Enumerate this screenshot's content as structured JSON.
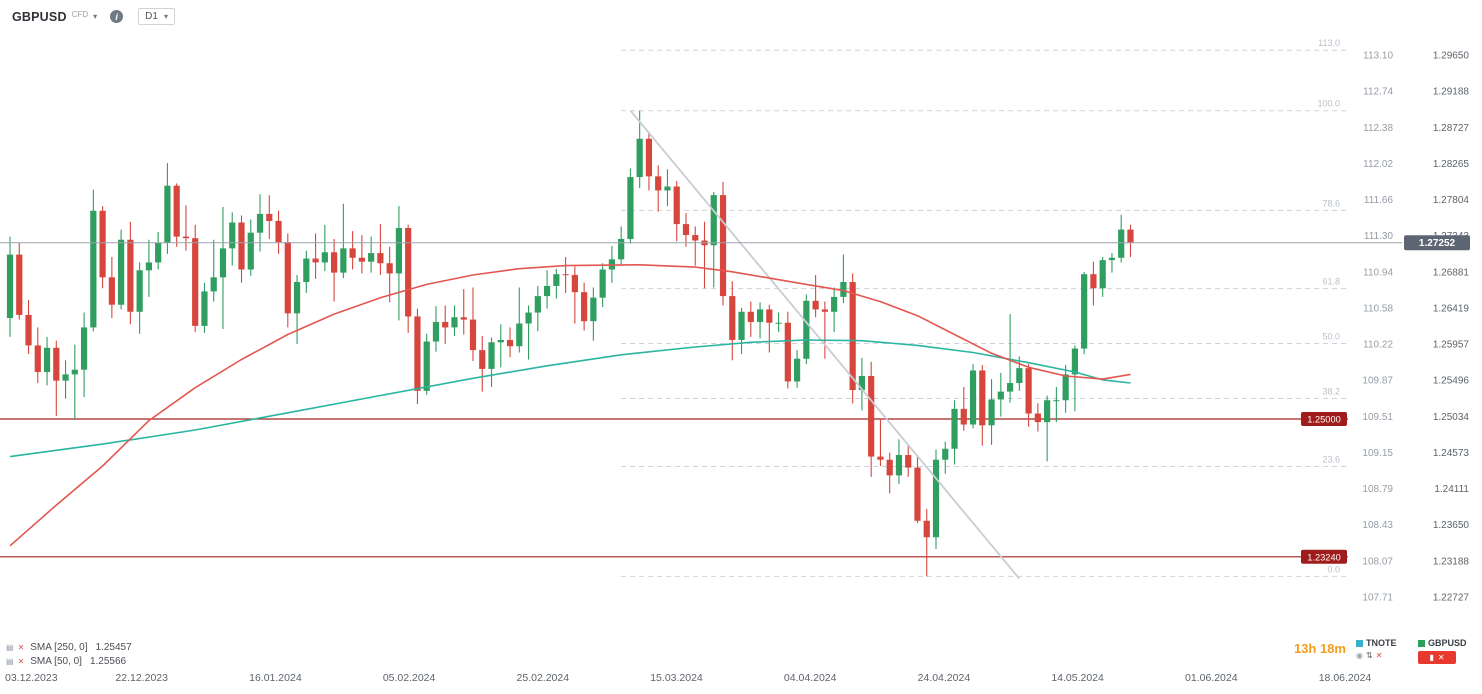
{
  "header": {
    "symbol": "GBPUSD",
    "market": "CFD",
    "timeframe": "D1"
  },
  "colors": {
    "bull": "#2f9e60",
    "bear": "#d7463d",
    "sma_50": "#e2574f",
    "sma_250": "#2ab5a0",
    "fib": "#cdd3da",
    "trendline": "#c9cdd3",
    "price_line": "#9aa2ab",
    "level_line": "#a32320",
    "level_badge": "#9e1d1c",
    "current_badge": "#5f6673",
    "countdown": "#f49d1d",
    "tnote_square": "#35b2c8",
    "gbpusd_square": "#2e9e5b"
  },
  "chart_data": {
    "type": "candlestick",
    "title": "GBPUSD CFD, D1",
    "current_price": 1.27252,
    "current_price_label": "1.27252",
    "y_axis_price": [
      "1.29650",
      "1.29188",
      "1.28727",
      "1.28265",
      "1.27804",
      "1.27343",
      "1.26881",
      "1.26419",
      "1.25957",
      "1.25496",
      "1.25034",
      "1.24573",
      "1.24111",
      "1.23650",
      "1.23188",
      "1.22727"
    ],
    "y_axis_secondary": [
      "113.10",
      "112.74",
      "112.38",
      "112.02",
      "111.66",
      "111.30",
      "110.94",
      "110.58",
      "110.22",
      "109.87",
      "109.51",
      "109.15",
      "108.79",
      "108.43",
      "108.07",
      "107.71"
    ],
    "x_axis_dates": [
      "03.12.2023",
      "22.12.2023",
      "16.01.2024",
      "05.02.2024",
      "25.02.2024",
      "15.03.2024",
      "04.04.2024",
      "24.04.2024",
      "14.05.2024",
      "01.06.2024",
      "18.06.2024"
    ],
    "horizontal_lines": [
      {
        "price": 1.25,
        "label": "1.25000"
      },
      {
        "price": 1.2324,
        "label": "1.23240"
      }
    ],
    "fibonacci": {
      "start_index": 66,
      "levels": [
        {
          "label": "113.0",
          "price": 1.29711
        },
        {
          "label": "100.0",
          "price": 1.28938
        },
        {
          "label": "78.6",
          "price": 1.27665
        },
        {
          "label": "61.8",
          "price": 1.26666
        },
        {
          "label": "50.0",
          "price": 1.25964
        },
        {
          "label": "38.2",
          "price": 1.25262
        },
        {
          "label": "23.6",
          "price": 1.24394
        },
        {
          "label": "0.0",
          "price": 1.2299
        }
      ]
    },
    "trendline": {
      "from": {
        "index": 67,
        "price": 1.2894
      },
      "to": {
        "index": 109,
        "price": 1.2296
      }
    },
    "sma50": {
      "points": [
        [
          0,
          1.2338
        ],
        [
          5,
          1.239
        ],
        [
          10,
          1.244
        ],
        [
          15,
          1.2498
        ],
        [
          20,
          1.254
        ],
        [
          25,
          1.2576
        ],
        [
          30,
          1.2608
        ],
        [
          35,
          1.2634
        ],
        [
          40,
          1.2655
        ],
        [
          45,
          1.2672
        ],
        [
          50,
          1.2684
        ],
        [
          55,
          1.2692
        ],
        [
          60,
          1.2696
        ],
        [
          68,
          1.2697
        ],
        [
          74,
          1.2694
        ],
        [
          78,
          1.2688
        ],
        [
          82,
          1.268
        ],
        [
          86,
          1.2672
        ],
        [
          90,
          1.2664
        ],
        [
          94,
          1.265
        ],
        [
          98,
          1.2632
        ],
        [
          102,
          1.2608
        ],
        [
          106,
          1.2584
        ],
        [
          110,
          1.2566
        ],
        [
          114,
          1.2555
        ],
        [
          118,
          1.2551
        ],
        [
          121,
          1.2557
        ]
      ]
    },
    "sma250": {
      "points": [
        [
          0,
          1.2452
        ],
        [
          10,
          1.2468
        ],
        [
          20,
          1.2486
        ],
        [
          30,
          1.2508
        ],
        [
          40,
          1.253
        ],
        [
          50,
          1.2552
        ],
        [
          58,
          1.2568
        ],
        [
          66,
          1.2582
        ],
        [
          74,
          1.2592
        ],
        [
          80,
          1.2598
        ],
        [
          86,
          1.2601
        ],
        [
          92,
          1.26
        ],
        [
          98,
          1.2594
        ],
        [
          104,
          1.2585
        ],
        [
          110,
          1.2572
        ],
        [
          115,
          1.256
        ],
        [
          118,
          1.255
        ],
        [
          121,
          1.2546
        ]
      ]
    },
    "candles": [
      [
        1.2629,
        1.2733,
        1.2605,
        1.271
      ],
      [
        1.271,
        1.2725,
        1.2627,
        1.2633
      ],
      [
        1.2633,
        1.2652,
        1.2583,
        1.2594
      ],
      [
        1.2594,
        1.2617,
        1.2546,
        1.256
      ],
      [
        1.256,
        1.2605,
        1.2543,
        1.2591
      ],
      [
        1.2591,
        1.26,
        1.2504,
        1.2549
      ],
      [
        1.2549,
        1.2575,
        1.2526,
        1.2557
      ],
      [
        1.2557,
        1.2595,
        1.25,
        1.2563
      ],
      [
        1.2563,
        1.2636,
        1.2528,
        1.2617
      ],
      [
        1.2617,
        1.2793,
        1.2612,
        1.2766
      ],
      [
        1.2766,
        1.2772,
        1.2667,
        1.2681
      ],
      [
        1.2681,
        1.2707,
        1.2629,
        1.2646
      ],
      [
        1.2646,
        1.2742,
        1.264,
        1.2729
      ],
      [
        1.2729,
        1.2752,
        1.2621,
        1.2637
      ],
      [
        1.2637,
        1.27,
        1.2609,
        1.269
      ],
      [
        1.269,
        1.2729,
        1.2656,
        1.27
      ],
      [
        1.27,
        1.2739,
        1.2691,
        1.2725
      ],
      [
        1.2725,
        1.2827,
        1.2711,
        1.2798
      ],
      [
        1.2798,
        1.2801,
        1.272,
        1.2733
      ],
      [
        1.2733,
        1.2773,
        1.2715,
        1.2731
      ],
      [
        1.2731,
        1.2748,
        1.2611,
        1.2619
      ],
      [
        1.2619,
        1.2674,
        1.261,
        1.2663
      ],
      [
        1.2663,
        1.2729,
        1.265,
        1.2681
      ],
      [
        1.2681,
        1.2771,
        1.2615,
        1.2718
      ],
      [
        1.2718,
        1.2764,
        1.2696,
        1.2751
      ],
      [
        1.2751,
        1.276,
        1.2674,
        1.2691
      ],
      [
        1.2691,
        1.2755,
        1.2683,
        1.2738
      ],
      [
        1.2738,
        1.2787,
        1.2714,
        1.2762
      ],
      [
        1.2762,
        1.2786,
        1.273,
        1.2753
      ],
      [
        1.2753,
        1.2766,
        1.2711,
        1.2726
      ],
      [
        1.2726,
        1.2737,
        1.2617,
        1.2635
      ],
      [
        1.2635,
        1.2684,
        1.2596,
        1.2675
      ],
      [
        1.2675,
        1.2715,
        1.2661,
        1.2705
      ],
      [
        1.2705,
        1.2737,
        1.2679,
        1.27
      ],
      [
        1.27,
        1.2748,
        1.2689,
        1.2713
      ],
      [
        1.2713,
        1.273,
        1.265,
        1.2687
      ],
      [
        1.2687,
        1.2775,
        1.268,
        1.2718
      ],
      [
        1.2718,
        1.274,
        1.2691,
        1.2706
      ],
      [
        1.2706,
        1.2735,
        1.2686,
        1.2701
      ],
      [
        1.2701,
        1.2733,
        1.2687,
        1.2712
      ],
      [
        1.2712,
        1.2749,
        1.2684,
        1.2699
      ],
      [
        1.2699,
        1.272,
        1.2649,
        1.2686
      ],
      [
        1.2686,
        1.2772,
        1.2626,
        1.2744
      ],
      [
        1.2744,
        1.2748,
        1.261,
        1.2631
      ],
      [
        1.2631,
        1.2641,
        1.2519,
        1.2536
      ],
      [
        1.2536,
        1.2609,
        1.2531,
        1.2599
      ],
      [
        1.2599,
        1.2644,
        1.2586,
        1.2624
      ],
      [
        1.2624,
        1.2645,
        1.2596,
        1.2617
      ],
      [
        1.2617,
        1.2645,
        1.2606,
        1.263
      ],
      [
        1.263,
        1.2666,
        1.2608,
        1.2627
      ],
      [
        1.2627,
        1.2668,
        1.2574,
        1.2588
      ],
      [
        1.2588,
        1.2606,
        1.2535,
        1.2564
      ],
      [
        1.2564,
        1.2604,
        1.2541,
        1.2598
      ],
      [
        1.2598,
        1.2621,
        1.2566,
        1.2601
      ],
      [
        1.2601,
        1.2617,
        1.2579,
        1.2593
      ],
      [
        1.2593,
        1.2668,
        1.2585,
        1.2622
      ],
      [
        1.2622,
        1.2645,
        1.2576,
        1.2636
      ],
      [
        1.2636,
        1.267,
        1.2612,
        1.2657
      ],
      [
        1.2657,
        1.269,
        1.2641,
        1.267
      ],
      [
        1.267,
        1.2692,
        1.2654,
        1.2685
      ],
      [
        1.2685,
        1.2707,
        1.2661,
        1.2684
      ],
      [
        1.2684,
        1.2695,
        1.2622,
        1.2662
      ],
      [
        1.2662,
        1.2674,
        1.2613,
        1.2625
      ],
      [
        1.2625,
        1.2668,
        1.26,
        1.2655
      ],
      [
        1.2655,
        1.2699,
        1.2643,
        1.2691
      ],
      [
        1.2691,
        1.2721,
        1.2674,
        1.2704
      ],
      [
        1.2704,
        1.2746,
        1.2696,
        1.273
      ],
      [
        1.273,
        1.282,
        1.2724,
        1.2809
      ],
      [
        1.2809,
        1.2894,
        1.2795,
        1.2858
      ],
      [
        1.2858,
        1.2867,
        1.2792,
        1.281
      ],
      [
        1.281,
        1.2824,
        1.2765,
        1.2792
      ],
      [
        1.2792,
        1.2819,
        1.2772,
        1.2797
      ],
      [
        1.2797,
        1.2804,
        1.2727,
        1.2749
      ],
      [
        1.2749,
        1.2763,
        1.272,
        1.2735
      ],
      [
        1.2735,
        1.2746,
        1.2696,
        1.2728
      ],
      [
        1.2728,
        1.2752,
        1.2667,
        1.2722
      ],
      [
        1.2722,
        1.279,
        1.2668,
        1.2786
      ],
      [
        1.2786,
        1.2803,
        1.2645,
        1.2657
      ],
      [
        1.2657,
        1.2676,
        1.2575,
        1.2601
      ],
      [
        1.2601,
        1.2642,
        1.2583,
        1.2637
      ],
      [
        1.2637,
        1.265,
        1.2605,
        1.2624
      ],
      [
        1.2624,
        1.2649,
        1.2603,
        1.264
      ],
      [
        1.264,
        1.2646,
        1.2585,
        1.2623
      ],
      [
        1.2623,
        1.2636,
        1.2611,
        1.2623
      ],
      [
        1.2623,
        1.2637,
        1.2539,
        1.2548
      ],
      [
        1.2548,
        1.2588,
        1.254,
        1.2577
      ],
      [
        1.2577,
        1.2659,
        1.257,
        1.2651
      ],
      [
        1.2651,
        1.2684,
        1.263,
        1.264
      ],
      [
        1.264,
        1.265,
        1.2577,
        1.2637
      ],
      [
        1.2637,
        1.2668,
        1.2611,
        1.2656
      ],
      [
        1.2656,
        1.271,
        1.2648,
        1.2675
      ],
      [
        1.2675,
        1.2686,
        1.252,
        1.2537
      ],
      [
        1.2537,
        1.2578,
        1.2511,
        1.2555
      ],
      [
        1.2555,
        1.2573,
        1.2426,
        1.2452
      ],
      [
        1.2452,
        1.2499,
        1.244,
        1.2448
      ],
      [
        1.2448,
        1.2457,
        1.2405,
        1.2428
      ],
      [
        1.2428,
        1.2474,
        1.2417,
        1.2454
      ],
      [
        1.2454,
        1.2466,
        1.2426,
        1.2438
      ],
      [
        1.2438,
        1.2452,
        1.2367,
        1.237
      ],
      [
        1.237,
        1.2385,
        1.2299,
        1.2349
      ],
      [
        1.2349,
        1.2461,
        1.2334,
        1.2448
      ],
      [
        1.2448,
        1.2471,
        1.243,
        1.2462
      ],
      [
        1.2462,
        1.2524,
        1.2442,
        1.2513
      ],
      [
        1.2513,
        1.2541,
        1.2485,
        1.2493
      ],
      [
        1.2493,
        1.257,
        1.2488,
        1.2562
      ],
      [
        1.2562,
        1.2569,
        1.2466,
        1.2492
      ],
      [
        1.2492,
        1.2551,
        1.2467,
        1.2525
      ],
      [
        1.2525,
        1.2559,
        1.2503,
        1.2535
      ],
      [
        1.2535,
        1.2634,
        1.2521,
        1.2546
      ],
      [
        1.2546,
        1.258,
        1.2536,
        1.2565
      ],
      [
        1.2565,
        1.257,
        1.249,
        1.2507
      ],
      [
        1.2507,
        1.252,
        1.2484,
        1.2496
      ],
      [
        1.2496,
        1.253,
        1.2446,
        1.2524
      ],
      [
        1.2524,
        1.2541,
        1.2496,
        1.2524
      ],
      [
        1.2524,
        1.2569,
        1.2508,
        1.2557
      ],
      [
        1.2557,
        1.2594,
        1.251,
        1.259
      ],
      [
        1.259,
        1.2688,
        1.2583,
        1.2685
      ],
      [
        1.2685,
        1.2701,
        1.2645,
        1.2667
      ],
      [
        1.2667,
        1.2707,
        1.2656,
        1.2703
      ],
      [
        1.2703,
        1.2712,
        1.2687,
        1.2706
      ],
      [
        1.2706,
        1.2761,
        1.27,
        1.2742
      ],
      [
        1.2742,
        1.2748,
        1.2707,
        1.2725
      ]
    ]
  },
  "indicators": [
    {
      "label": "SMA [250, 0]",
      "value": "1.25457"
    },
    {
      "label": "SMA [50, 0]",
      "value": "1.25566"
    }
  ],
  "footer": {
    "countdown": "13h 18m",
    "watchlist": [
      {
        "symbol": "TNOTE",
        "color": "#35b2c8"
      },
      {
        "symbol": "GBPUSD",
        "color": "#2e9e5b"
      }
    ]
  }
}
